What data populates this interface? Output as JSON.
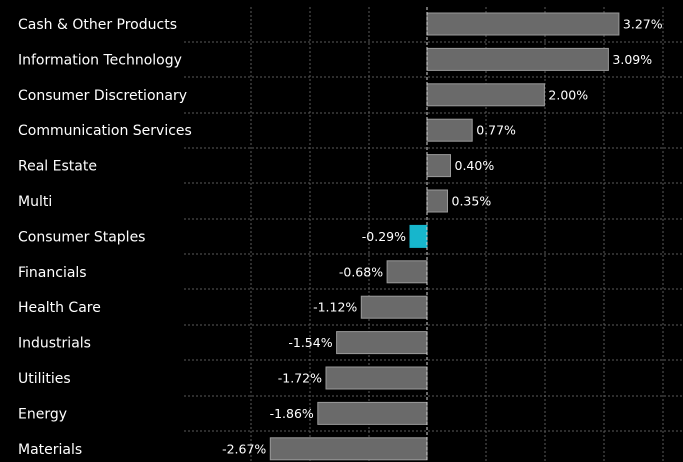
{
  "chart_data": {
    "type": "bar",
    "orientation": "horizontal",
    "categories": [
      "Cash & Other Products",
      "Information Technology",
      "Consumer Discretionary",
      "Communication Services",
      "Real Estate",
      "Multi",
      "Consumer Staples",
      "Financials",
      "Health Care",
      "Industrials",
      "Utilities",
      "Energy",
      "Materials"
    ],
    "values": [
      3.27,
      3.09,
      2.0,
      0.77,
      0.4,
      0.35,
      -0.29,
      -0.68,
      -1.12,
      -1.54,
      -1.72,
      -1.86,
      -2.67
    ],
    "value_labels": [
      "3.27%",
      "3.09%",
      "2.00%",
      "0.77%",
      "0.40%",
      "0.35%",
      "-0.29%",
      "-0.68%",
      "-1.12%",
      "-1.54%",
      "-1.72%",
      "-1.86%",
      "-2.67%"
    ],
    "highlight_index": 6,
    "xlim": [
      -4.0,
      4.3
    ],
    "grid": true,
    "colors": {
      "background": "#000000",
      "bar": "#6a6a6a",
      "bar_stroke": "#9a9a9a",
      "highlight": "#17b6cc",
      "text": "#ffffff",
      "grid": "#5a5a5a"
    }
  }
}
